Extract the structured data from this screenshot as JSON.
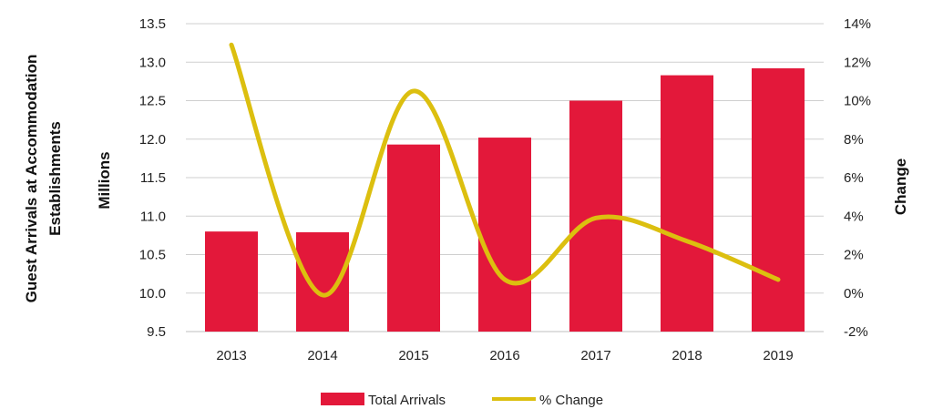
{
  "chart_data": {
    "type": "bar+line",
    "categories": [
      "2013",
      "2014",
      "2015",
      "2016",
      "2017",
      "2018",
      "2019"
    ],
    "series": [
      {
        "name": "Total Arrivals",
        "type": "bar",
        "axis": "left",
        "color": "#e3183a",
        "values": [
          10.8,
          10.79,
          11.93,
          12.02,
          12.5,
          12.83,
          12.92
        ]
      },
      {
        "name": "% Change",
        "type": "line",
        "axis": "right",
        "color": "#dcbf0f",
        "values": [
          12.9,
          -0.1,
          10.5,
          0.7,
          3.9,
          2.7,
          0.7
        ]
      }
    ],
    "left_axis": {
      "title_lines": [
        "Guest Arrivals at Accommodation",
        "Establishments"
      ],
      "unit_label": "Millions",
      "ylim": [
        9.5,
        13.5
      ],
      "ticks": [
        "9.5",
        "10.0",
        "10.5",
        "11.0",
        "11.5",
        "12.0",
        "12.5",
        "13.0",
        "13.5"
      ]
    },
    "right_axis": {
      "title": "Change",
      "ylim": [
        -2,
        14
      ],
      "ticks": [
        "-2%",
        "0%",
        "2%",
        "4%",
        "6%",
        "8%",
        "10%",
        "12%",
        "14%"
      ]
    },
    "grid": true,
    "legend": {
      "position": "bottom-center",
      "entries": [
        "Total Arrivals",
        "% Change"
      ]
    }
  }
}
